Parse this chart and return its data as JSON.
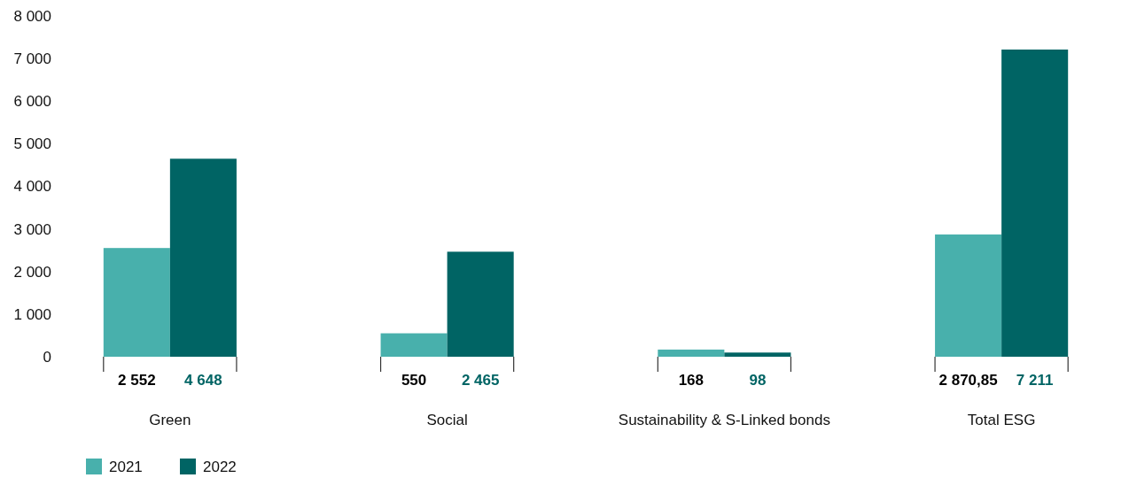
{
  "chart_data": {
    "type": "bar",
    "categories": [
      "Green",
      "Social",
      "Sustainability & S-Linked bonds",
      "Total ESG"
    ],
    "series": [
      {
        "name": "2021",
        "color": "#48b0ac",
        "values": [
          2552,
          550,
          168,
          2870.85
        ],
        "value_labels": [
          "2 552",
          "550",
          "168",
          "2 870,85"
        ]
      },
      {
        "name": "2022",
        "color": "#006464",
        "values": [
          4648,
          2465,
          98,
          7211
        ],
        "value_labels": [
          "4 648",
          "2 465",
          "98",
          "7 211"
        ]
      }
    ],
    "ylim": [
      0,
      8000
    ],
    "yticks": [
      {
        "value": 0,
        "label": "0"
      },
      {
        "value": 1000,
        "label": "1 000"
      },
      {
        "value": 2000,
        "label": "2 000"
      },
      {
        "value": 3000,
        "label": "3 000"
      },
      {
        "value": 4000,
        "label": "4 000"
      },
      {
        "value": 5000,
        "label": "5 000"
      },
      {
        "value": 6000,
        "label": "6 000"
      },
      {
        "value": 7000,
        "label": "7 000"
      },
      {
        "value": 8000,
        "label": "8 000"
      }
    ],
    "data_labels": true,
    "grid": false,
    "legend": "bottom left"
  }
}
